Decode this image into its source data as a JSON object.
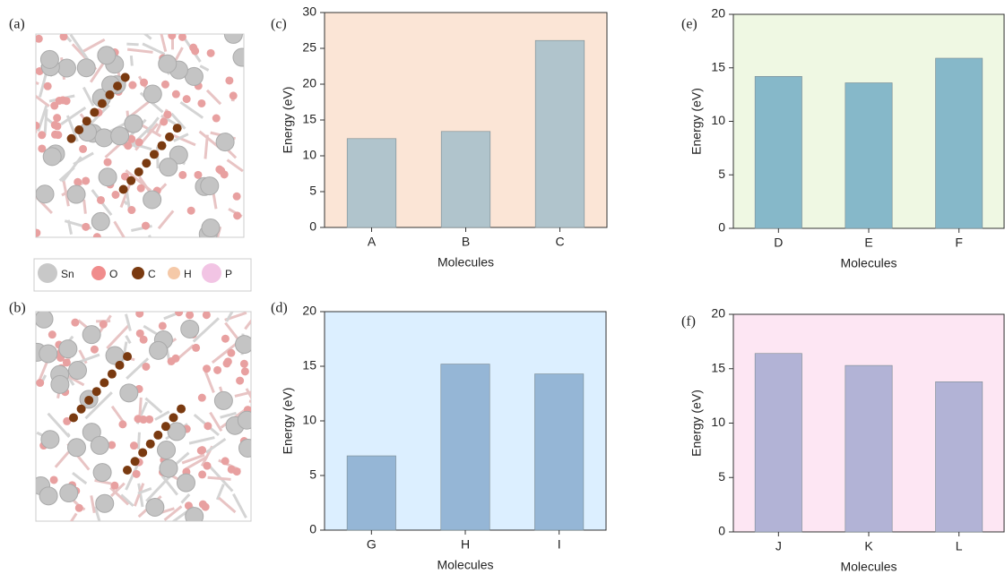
{
  "panels": [
    {
      "label": "(a)"
    },
    {
      "label": "(b)"
    }
  ],
  "legend": [
    {
      "name": "Sn",
      "color": "#c8c8c8"
    },
    {
      "name": "O",
      "color": "#f08c8c"
    },
    {
      "name": "C",
      "color": "#7a3a10"
    },
    {
      "name": "H",
      "color": "#f5c9a8"
    },
    {
      "name": "P",
      "color": "#f2c4e4"
    }
  ],
  "chart_data": [
    {
      "type": "bar",
      "label": "(c)",
      "x_label": "Molecules",
      "y_label": "Energy (eV)",
      "categories": [
        "A",
        "B",
        "C"
      ],
      "values": [
        12.4,
        13.4,
        26.1
      ],
      "color": "#b0c4cc",
      "background": "#fbe5d6",
      "ylim": [
        0,
        30
      ],
      "yticks": [
        0,
        5,
        10,
        15,
        20,
        25,
        30
      ]
    },
    {
      "type": "bar",
      "label": "(d)",
      "x_label": "Molecules",
      "y_label": "Energy (eV)",
      "categories": [
        "G",
        "H",
        "I"
      ],
      "values": [
        6.8,
        15.2,
        14.3
      ],
      "color": "#95b6d6",
      "background": "#dcefff",
      "ylim": [
        0,
        20
      ],
      "yticks": [
        0,
        5,
        10,
        15,
        20
      ]
    },
    {
      "type": "bar",
      "label": "(e)",
      "x_label": "Molecules",
      "y_label": "Energy (eV)",
      "categories": [
        "D",
        "E",
        "F"
      ],
      "values": [
        14.2,
        13.6,
        15.9
      ],
      "color": "#86b8c9",
      "background": "#eff8e3",
      "ylim": [
        0,
        20
      ],
      "yticks": [
        0,
        5,
        10,
        15,
        20
      ]
    },
    {
      "type": "bar",
      "label": "(f)",
      "x_label": "Molecules",
      "y_label": "Energy (eV)",
      "categories": [
        "J",
        "K",
        "L"
      ],
      "values": [
        16.4,
        15.3,
        13.8
      ],
      "color": "#b2b3d6",
      "background": "#fde6f3",
      "ylim": [
        0,
        20
      ],
      "yticks": [
        0,
        5,
        10,
        15,
        20
      ]
    }
  ]
}
